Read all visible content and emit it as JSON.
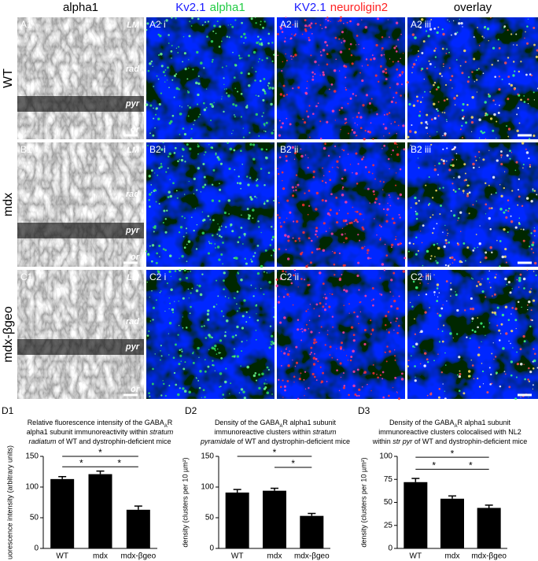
{
  "columns": [
    [
      {
        "text": "alpha1",
        "color": "#000000"
      }
    ],
    [
      {
        "text": "Kv2.1",
        "color": "#1a1aff"
      },
      {
        "text": "alpha1",
        "color": "#22cc44"
      }
    ],
    [
      {
        "text": "KV2.1",
        "color": "#1a1aff"
      },
      {
        "text": "neuroligin2",
        "color": "#ff2020"
      }
    ],
    [
      {
        "text": "overlay",
        "color": "#000000"
      }
    ]
  ],
  "rows": [
    {
      "label": "WT",
      "panels": [
        "A1",
        "A2 i",
        "A2 ii",
        "A2 iii"
      ]
    },
    {
      "label": "mdx",
      "panels": [
        "B1",
        "B2 i",
        "B2 ii",
        "B2 iii"
      ]
    },
    {
      "label": "mdx-βgeo",
      "panels": [
        "C1",
        "C2 i",
        "C2 ii",
        "C2 iii"
      ]
    }
  ],
  "layers": [
    "LM",
    "rad",
    "pyr",
    "or"
  ],
  "chart_data": [
    {
      "type": "bar",
      "panel": "D1",
      "title": [
        [
          {
            "text": "Relative fluorescence intensity of the GABA"
          },
          {
            "text": "A",
            "sub": true
          },
          {
            "text": "R"
          }
        ],
        [
          {
            "text": "alpha1 subunit immunoreactivity within "
          },
          {
            "text": "stratum",
            "italic": true
          }
        ],
        [
          {
            "text": "radiatum",
            "italic": true
          },
          {
            "text": " of WT and dystrophin-deficient mice"
          }
        ]
      ],
      "ylabel": "uorescence intensity (arbitrary units)",
      "categories": [
        "WT",
        "mdx",
        "mdx-βgeo"
      ],
      "values": [
        113,
        121,
        63
      ],
      "errors": [
        4,
        5,
        6
      ],
      "color": "#000000",
      "ylim": [
        0,
        150
      ],
      "yticks": [
        0,
        50,
        100,
        150
      ],
      "significance": [
        {
          "between": [
            "WT",
            "mdx-βgeo"
          ],
          "y": 150,
          "label": "*"
        },
        {
          "between": [
            "WT",
            "mdx"
          ],
          "y": 133,
          "label": "*"
        },
        {
          "between": [
            "mdx",
            "mdx-βgeo"
          ],
          "y": 133,
          "label": "*"
        }
      ]
    },
    {
      "type": "bar",
      "panel": "D2",
      "title": [
        [
          {
            "text": "Density of the GABA"
          },
          {
            "text": "A",
            "sub": true
          },
          {
            "text": "R alpha1 subunit"
          }
        ],
        [
          {
            "text": "immunoreactive clusters within "
          },
          {
            "text": "stratum",
            "italic": true
          }
        ],
        [
          {
            "text": "pyramidale",
            "italic": true
          },
          {
            "text": " of WT and dystrophin-deficient mice"
          }
        ]
      ],
      "ylabel": "density (clusters per 10 µm²)",
      "categories": [
        "WT",
        "mdx",
        "mdx-βgeo"
      ],
      "values": [
        91,
        94,
        53
      ],
      "errors": [
        5,
        4,
        4
      ],
      "color": "#000000",
      "ylim": [
        0,
        150
      ],
      "yticks": [
        0,
        50,
        100,
        150
      ],
      "significance": [
        {
          "between": [
            "WT",
            "mdx-βgeo"
          ],
          "y": 150,
          "label": "*"
        },
        {
          "between": [
            "mdx",
            "mdx-βgeo"
          ],
          "y": 132,
          "label": "*"
        }
      ]
    },
    {
      "type": "bar",
      "panel": "D3",
      "title": [
        [
          {
            "text": "Density of the GABA"
          },
          {
            "text": "A",
            "sub": true
          },
          {
            "text": "R alpha1 subunit"
          }
        ],
        [
          {
            "text": "immunoreactive clusters colocalised with NL2"
          }
        ],
        [
          {
            "text": "within "
          },
          {
            "text": "str pyr",
            "italic": true
          },
          {
            "text": " of WT and dystrophin-deficient mice"
          }
        ]
      ],
      "ylabel": "density (clusters per 10 µm²)",
      "categories": [
        "WT",
        "mdx",
        "mdx-βgeo"
      ],
      "values": [
        72,
        54,
        44
      ],
      "errors": [
        4,
        3,
        3
      ],
      "color": "#000000",
      "ylim": [
        0,
        100
      ],
      "yticks": [
        0,
        25,
        50,
        75,
        100
      ],
      "significance": [
        {
          "between": [
            "WT",
            "mdx-βgeo"
          ],
          "y": 99,
          "label": "*"
        },
        {
          "between": [
            "WT",
            "mdx"
          ],
          "y": 86,
          "label": "*"
        },
        {
          "between": [
            "mdx",
            "mdx-βgeo"
          ],
          "y": 86,
          "label": "*"
        }
      ]
    }
  ]
}
